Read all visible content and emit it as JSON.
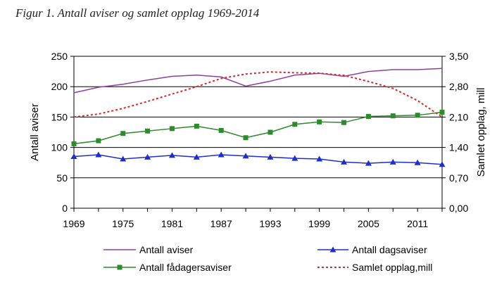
{
  "figure_title": "Figur 1. Antall aviser og samlet opplag 1969-2014",
  "colors": {
    "antall_aviser": "#8e3f9e",
    "dagsaviser": "#1f2fc4",
    "fadagersaviser": "#2d8a2d",
    "opplag": "#d42b2b",
    "axis": "#000000"
  },
  "chart_data": {
    "type": "line",
    "title": "Figur 1. Antall aviser og samlet opplag 1969-2014",
    "x": [
      1969,
      1972,
      1975,
      1978,
      1981,
      1984,
      1987,
      1990,
      1993,
      1996,
      1999,
      2002,
      2005,
      2008,
      2011,
      2014
    ],
    "xlim": [
      1969,
      2014
    ],
    "x_ticks": [
      "1969",
      "1975",
      "1981",
      "1987",
      "1993",
      "1999",
      "2005",
      "2011"
    ],
    "x_tick_values": [
      1969,
      1975,
      1981,
      1987,
      1993,
      1999,
      2005,
      2011
    ],
    "ylabel": "Antall aviser",
    "ylim": [
      0,
      250
    ],
    "y_ticks": [
      "0",
      "50",
      "100",
      "150",
      "200",
      "250"
    ],
    "y_tick_values": [
      0,
      50,
      100,
      150,
      200,
      250
    ],
    "y2label": "Samlet opplag, mill",
    "y2lim": [
      0,
      3.5
    ],
    "y2_ticks": [
      "0,00",
      "0,70",
      "1,40",
      "2,10",
      "2,80",
      "3,50"
    ],
    "y2_tick_values": [
      0,
      0.7,
      1.4,
      2.1,
      2.8,
      3.5
    ],
    "grid": "horizontal",
    "legend_position": "bottom",
    "series": [
      {
        "name": "Antall aviser",
        "axis": "left",
        "style": "solid",
        "marker": "none",
        "values": [
          190,
          199,
          204,
          211,
          217,
          219,
          216,
          201,
          209,
          219,
          222,
          217,
          225,
          228,
          228,
          230
        ]
      },
      {
        "name": "Antall dagsaviser",
        "axis": "left",
        "style": "solid",
        "marker": "triangle",
        "values": [
          85,
          88,
          81,
          84,
          87,
          84,
          88,
          86,
          84,
          82,
          81,
          76,
          74,
          76,
          75,
          72
        ]
      },
      {
        "name": "Antall fådagersaviser",
        "axis": "left",
        "style": "solid",
        "marker": "square",
        "values": [
          106,
          111,
          123,
          127,
          131,
          135,
          128,
          116,
          125,
          138,
          142,
          141,
          151,
          152,
          153,
          158
        ]
      },
      {
        "name": "Samlet opplag,mill",
        "axis": "right",
        "style": "dotted",
        "marker": "none",
        "values": [
          2.1,
          2.17,
          2.3,
          2.46,
          2.63,
          2.8,
          2.99,
          3.09,
          3.14,
          3.12,
          3.11,
          3.06,
          2.92,
          2.76,
          2.48,
          2.1
        ]
      }
    ]
  }
}
